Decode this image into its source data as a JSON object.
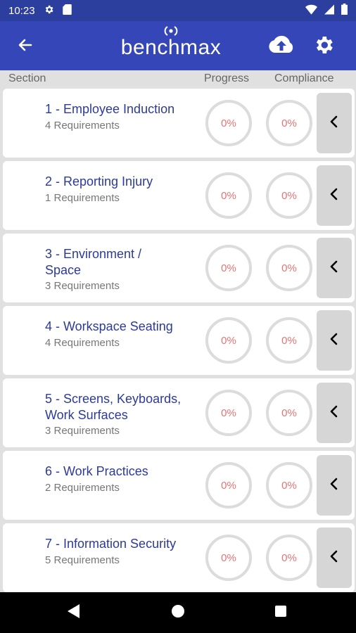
{
  "status_bar": {
    "time": "10:23"
  },
  "app_bar": {
    "logo_text": "benchmax"
  },
  "columns": {
    "section": "Section",
    "progress": "Progress",
    "compliance": "Compliance"
  },
  "sections": [
    {
      "title": "1 - Employee Induction",
      "requirements": "4 Requirements",
      "progress": "0%",
      "compliance": "0%"
    },
    {
      "title": "2 - Reporting Injury",
      "requirements": "1 Requirements",
      "progress": "0%",
      "compliance": "0%"
    },
    {
      "title": "3 - Environment / Space",
      "requirements": "3 Requirements",
      "progress": "0%",
      "compliance": "0%"
    },
    {
      "title": "4 - Workspace Seating",
      "requirements": "4 Requirements",
      "progress": "0%",
      "compliance": "0%"
    },
    {
      "title": "5 - Screens, Keyboards, Work Surfaces",
      "requirements": "3 Requirements",
      "progress": "0%",
      "compliance": "0%"
    },
    {
      "title": "6 - Work Practices",
      "requirements": "2 Requirements",
      "progress": "0%",
      "compliance": "0%"
    },
    {
      "title": "7 - Information Security",
      "requirements": "5 Requirements",
      "progress": "0%",
      "compliance": "0%"
    }
  ],
  "colors": {
    "app_bar": "#3547b8",
    "status_bar": "#2c3e9e",
    "title_text": "#2c3a9c",
    "percent_text": "#e57373"
  },
  "icons": {
    "back": "arrow-left-icon",
    "upload": "cloud-upload-icon",
    "settings": "gear-icon",
    "expand": "chevron-left-icon"
  }
}
